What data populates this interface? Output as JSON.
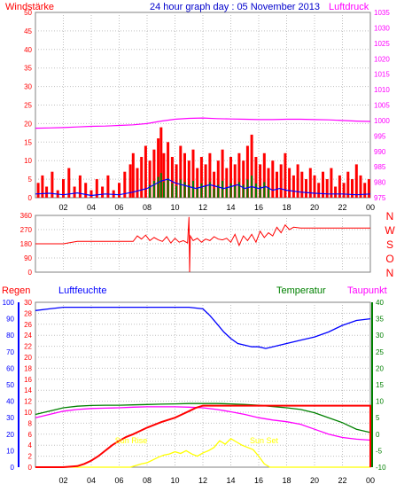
{
  "colors": {
    "wind": "#ff0000",
    "gust": "#ff0000",
    "pressure": "#ff00ff",
    "wind_avg": "#0000ff",
    "wind_green": "#008000",
    "direction": "#ff0000",
    "humidity": "#0000ff",
    "temperature": "#008000",
    "dewpoint": "#ff00ff",
    "rain": "#ff0000",
    "solar": "#ffff00",
    "title": "#0000cc"
  },
  "chart_data": [
    {
      "type": "bar",
      "title": "24 hour graph day : 05 November 2013",
      "ylabel": "Windstärke",
      "y2label": "Luftdruck",
      "x_ticks": [
        "02",
        "04",
        "06",
        "08",
        "10",
        "12",
        "14",
        "16",
        "18",
        "20",
        "22",
        "00"
      ],
      "xlim": [
        0,
        24
      ],
      "y_ticks": [
        "0",
        "5",
        "10",
        "15",
        "20",
        "25",
        "30",
        "35",
        "40",
        "45",
        "50"
      ],
      "ylim": [
        0,
        50
      ],
      "y2_ticks": [
        "975",
        "980",
        "985",
        "990",
        "995",
        "1000",
        "1005",
        "1010",
        "1015",
        "1020",
        "1025",
        "1030",
        "1035"
      ],
      "y2lim": [
        975,
        1035
      ],
      "grid": true,
      "series": [
        {
          "key": "gust",
          "x": [
            0.2,
            0.5,
            0.8,
            1.2,
            1.6,
            2.0,
            2.4,
            2.8,
            3.2,
            3.6,
            4.0,
            4.4,
            4.8,
            5.2,
            5.6,
            6.0,
            6.4,
            6.8,
            7.0,
            7.3,
            7.6,
            7.9,
            8.2,
            8.5,
            8.8,
            9.0,
            9.2,
            9.5,
            9.8,
            10.1,
            10.4,
            10.7,
            11.0,
            11.3,
            11.6,
            11.9,
            12.2,
            12.5,
            12.8,
            13.1,
            13.4,
            13.7,
            14.0,
            14.3,
            14.6,
            14.9,
            15.2,
            15.5,
            15.8,
            16.1,
            16.4,
            16.7,
            17.0,
            17.3,
            17.6,
            17.9,
            18.2,
            18.5,
            18.8,
            19.1,
            19.4,
            19.7,
            20.0,
            20.3,
            20.6,
            20.9,
            21.2,
            21.5,
            21.8,
            22.1,
            22.4,
            22.7,
            23.0,
            23.3,
            23.6,
            23.9
          ],
          "values": [
            4,
            6,
            3,
            7,
            2,
            5,
            8,
            3,
            6,
            4,
            2,
            5,
            3,
            6,
            2,
            4,
            7,
            9,
            12,
            8,
            11,
            14,
            10,
            13,
            16,
            19,
            12,
            15,
            11,
            9,
            14,
            12,
            10,
            13,
            8,
            11,
            9,
            12,
            7,
            10,
            13,
            8,
            11,
            9,
            12,
            10,
            14,
            17,
            11,
            9,
            12,
            8,
            10,
            7,
            9,
            12,
            8,
            6,
            9,
            7,
            5,
            8,
            6,
            4,
            7,
            5,
            8,
            3,
            6,
            4,
            7,
            5,
            9,
            6,
            4,
            5
          ]
        },
        {
          "key": "wind_avg",
          "x": [
            0,
            1,
            2,
            3,
            4,
            5,
            6,
            7,
            8,
            8.5,
            9,
            9.5,
            10,
            10.5,
            11,
            11.5,
            12,
            12.5,
            13,
            13.5,
            14,
            14.5,
            15,
            15.5,
            16,
            16.5,
            17,
            17.5,
            18,
            19,
            20,
            21,
            22,
            23,
            24
          ],
          "values": [
            1,
            1.2,
            0.8,
            1.3,
            0.6,
            1,
            0.8,
            1.5,
            2.5,
            3.5,
            4.5,
            5,
            4,
            3.5,
            3,
            2.5,
            3,
            3.5,
            3,
            2.5,
            3,
            3.5,
            2.5,
            3,
            2.5,
            3,
            2,
            2.5,
            2,
            1.5,
            1.2,
            1,
            1,
            0.8,
            1
          ]
        },
        {
          "key": "pressure",
          "x": [
            0,
            1,
            2,
            3,
            4,
            5,
            6,
            7,
            8,
            9,
            10,
            11,
            12,
            13,
            14,
            15,
            16,
            17,
            18,
            19,
            20,
            21,
            22,
            23,
            24
          ],
          "values": [
            997.5,
            997.6,
            997.7,
            997.9,
            998.1,
            998.2,
            998.4,
            998.6,
            999.0,
            999.8,
            1000.4,
            1000.7,
            1000.8,
            1000.6,
            1000.5,
            1000.4,
            1000.3,
            1000.3,
            1000.4,
            1000.4,
            1000.3,
            1000.2,
            1000.0,
            999.8,
            999.7
          ]
        }
      ]
    },
    {
      "type": "line",
      "ylabel_letters": [
        "N",
        "W",
        "S",
        "O",
        "N"
      ],
      "x_ticks": [
        "02",
        "04",
        "06",
        "08",
        "10",
        "12",
        "14",
        "16",
        "18",
        "20",
        "22",
        "00"
      ],
      "xlim": [
        0,
        24
      ],
      "y_ticks": [
        "360",
        "270",
        "180",
        "90",
        "0"
      ],
      "ylim": [
        0,
        360
      ],
      "grid": true,
      "series": [
        {
          "key": "direction",
          "x": [
            0,
            1,
            2,
            3,
            4,
            5,
            6,
            7,
            7.3,
            7.6,
            7.9,
            8.2,
            8.5,
            8.8,
            9.1,
            9.4,
            9.7,
            10.0,
            10.3,
            10.6,
            10.9,
            11.0,
            11.05,
            11.1,
            11.3,
            11.6,
            11.9,
            12.2,
            12.5,
            12.8,
            13.1,
            13.4,
            13.7,
            14.0,
            14.3,
            14.6,
            14.9,
            15.2,
            15.5,
            15.8,
            16.1,
            16.4,
            16.7,
            17.0,
            17.3,
            17.6,
            17.9,
            18.2,
            18.5,
            19.0,
            20,
            21,
            22,
            23,
            24
          ],
          "values": [
            180,
            180,
            180,
            195,
            195,
            195,
            195,
            195,
            230,
            210,
            235,
            200,
            220,
            205,
            195,
            225,
            185,
            215,
            190,
            200,
            185,
            350,
            0,
            230,
            200,
            215,
            190,
            210,
            200,
            225,
            210,
            205,
            215,
            190,
            240,
            170,
            230,
            200,
            240,
            190,
            260,
            220,
            250,
            230,
            285,
            250,
            300,
            270,
            285,
            280,
            280,
            280,
            280,
            280,
            280
          ]
        }
      ]
    },
    {
      "type": "line",
      "legend": [
        "Regen",
        "Luftfeuchte",
        "Temperatur",
        "Taupunkt"
      ],
      "annotations": [
        "Sun Rise",
        "Sun Set"
      ],
      "sun_rise_x": 6.9,
      "sun_set_x": 16.4,
      "x_ticks": [
        "02",
        "04",
        "06",
        "08",
        "10",
        "12",
        "14",
        "16",
        "18",
        "20",
        "22",
        "00"
      ],
      "xlim": [
        0,
        24
      ],
      "rain_ticks": [
        "0",
        "2",
        "4",
        "6",
        "8",
        "10",
        "12",
        "14",
        "16",
        "18",
        "20",
        "22",
        "24",
        "26",
        "28",
        "30"
      ],
      "rain_lim": [
        0,
        30
      ],
      "humidity_ticks": [
        "0",
        "10",
        "20",
        "30",
        "40",
        "50",
        "60",
        "70",
        "80",
        "90",
        "100"
      ],
      "humidity_lim": [
        0,
        100
      ],
      "temp_ticks": [
        "-10",
        "-5",
        "0",
        "5",
        "10",
        "15",
        "20",
        "25",
        "30",
        "35",
        "40"
      ],
      "temp_lim": [
        -10,
        40
      ],
      "grid": true,
      "series": [
        {
          "key": "humidity",
          "x": [
            0,
            1,
            2,
            3,
            4,
            5,
            6,
            7,
            8,
            9,
            10,
            11,
            12,
            12.5,
            13,
            13.5,
            14,
            14.5,
            15,
            15.5,
            16,
            16.5,
            17,
            17.5,
            18,
            18.5,
            19,
            20,
            21,
            22,
            23,
            24
          ],
          "values": [
            95,
            96,
            97,
            97,
            97,
            97,
            97,
            97,
            97,
            97,
            97,
            97,
            96,
            92,
            87,
            82,
            78,
            75,
            74,
            73,
            73,
            72,
            73,
            74,
            75,
            76,
            77,
            79,
            82,
            86,
            89,
            90
          ]
        },
        {
          "key": "temperature",
          "x": [
            0,
            1,
            2,
            3,
            4,
            5,
            6,
            7,
            8,
            9,
            10,
            11,
            12,
            13,
            14,
            15,
            16,
            17,
            18,
            19,
            20,
            21,
            22,
            23,
            24
          ],
          "values": [
            6,
            7,
            8,
            8.5,
            8.7,
            8.8,
            8.8,
            8.9,
            9.0,
            9.1,
            9.2,
            9.3,
            9.3,
            9.3,
            9.2,
            9.0,
            8.8,
            8.4,
            8.0,
            7.5,
            6.5,
            5.0,
            3.5,
            1.5,
            0.5
          ]
        },
        {
          "key": "dewpoint",
          "x": [
            0,
            1,
            2,
            3,
            4,
            5,
            6,
            7,
            8,
            9,
            10,
            11,
            12,
            13,
            14,
            15,
            16,
            17,
            18,
            19,
            20,
            21,
            22,
            23,
            24
          ],
          "values": [
            5,
            6,
            7,
            7.5,
            7.8,
            7.9,
            8.0,
            8.2,
            8.3,
            8.3,
            8.3,
            8.2,
            8.0,
            7.5,
            6.8,
            6.0,
            5.0,
            4.3,
            3.8,
            3.0,
            1.5,
            0,
            -1,
            -1.5,
            -1.8
          ]
        },
        {
          "key": "rain",
          "x": [
            0,
            1,
            2,
            3,
            3.5,
            4,
            4.5,
            5,
            5.5,
            6,
            6.5,
            7,
            7.5,
            8,
            8.5,
            9,
            9.5,
            10,
            10.5,
            11,
            11.5,
            12,
            24,
            24
          ],
          "values": [
            0,
            0,
            0,
            0.2,
            0.6,
            1.2,
            2.0,
            3.0,
            4.0,
            4.8,
            5.5,
            6.0,
            6.6,
            7.2,
            7.7,
            8.2,
            8.6,
            9.0,
            9.6,
            10.2,
            10.8,
            11.2,
            11.2,
            0
          ]
        },
        {
          "key": "solar",
          "x": [
            0,
            6.8,
            7.2,
            7.6,
            8,
            8.4,
            8.8,
            9.2,
            9.6,
            10,
            10.4,
            10.8,
            11.2,
            11.6,
            12,
            12.4,
            12.8,
            13.2,
            13.6,
            14,
            14.4,
            14.8,
            15.2,
            15.6,
            16,
            16.4,
            16.8,
            24
          ],
          "values": [
            0,
            0,
            0.3,
            0.6,
            0.8,
            1.3,
            1.8,
            2.2,
            2.4,
            2.8,
            2.5,
            3.0,
            2.4,
            2.0,
            2.6,
            3.0,
            3.6,
            4.8,
            4.2,
            5.2,
            4.6,
            4.0,
            3.6,
            3.2,
            2.0,
            0.6,
            0,
            0
          ]
        }
      ]
    }
  ]
}
